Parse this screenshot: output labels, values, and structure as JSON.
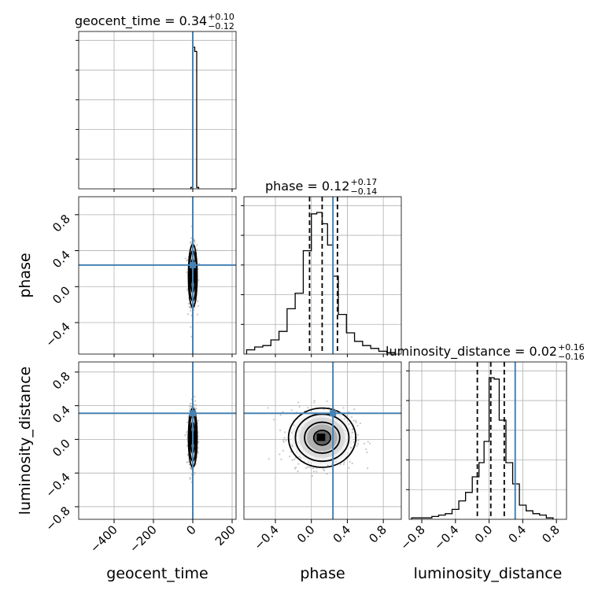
{
  "chart_data": {
    "type": "corner",
    "parameters": [
      "geocent_time",
      "phase",
      "luminosity_distance"
    ],
    "axis_labels": [
      "geocent_time",
      "phase",
      "luminosity_distance"
    ],
    "truths": {
      "geocent_time": 0,
      "phase": 0.24,
      "luminosity_distance": 0.31
    },
    "truth_color": "#4682b4",
    "grid": true,
    "ranges": {
      "geocent_time": [
        -580,
        220
      ],
      "phase": [
        -0.75,
        1.0
      ],
      "luminosity_distance": [
        -0.95,
        0.92
      ]
    },
    "ticks": {
      "geocent_time": [
        -400,
        -200,
        0,
        200
      ],
      "phase": [
        -0.4,
        0.0,
        0.4,
        0.8
      ],
      "luminosity_distance": [
        -0.8,
        -0.4,
        0.0,
        0.4,
        0.8
      ]
    },
    "tick_labels": {
      "geocent_time": [
        "−400",
        "−200",
        "0",
        "200"
      ],
      "phase": [
        "−0.4",
        "0.0",
        "0.4",
        "0.8"
      ],
      "luminosity_distance": [
        "−0.8",
        "−0.4",
        "0.0",
        "0.4",
        "0.8"
      ]
    },
    "phase_row_ticks": [
      -0.4,
      0.0,
      0.4,
      0.8
    ],
    "phase_row_tick_labels": [
      "−0.4",
      "0.0",
      "0.4",
      "0.8"
    ],
    "titles": [
      {
        "param": "geocent_time",
        "main": "geocent_time = 0.34",
        "upper": "+0.10",
        "lower": "−0.12"
      },
      {
        "param": "phase",
        "main": "phase = 0.12",
        "upper": "+0.17",
        "lower": "−0.14"
      },
      {
        "param": "luminosity_distance",
        "main": "luminosity_distance = 0.02",
        "upper": "+0.16",
        "lower": "−0.16"
      }
    ],
    "histograms": {
      "geocent_time": {
        "bin_edges": [
          -10,
          0,
          10,
          20,
          30
        ],
        "counts": [
          0.01,
          1.0,
          0.97,
          0.01
        ],
        "quantiles": [
          -0.12,
          0.34,
          0.44
        ]
      },
      "phase": {
        "bin_edges": [
          -0.72,
          -0.63,
          -0.54,
          -0.45,
          -0.36,
          -0.27,
          -0.18,
          -0.09,
          0.0,
          0.06,
          0.12,
          0.18,
          0.24,
          0.3,
          0.39,
          0.48,
          0.57,
          0.66,
          0.75,
          0.84,
          0.93
        ],
        "counts": [
          0.03,
          0.05,
          0.06,
          0.1,
          0.16,
          0.32,
          0.43,
          0.73,
          0.99,
          1.0,
          0.92,
          0.77,
          0.55,
          0.28,
          0.15,
          0.09,
          0.06,
          0.04,
          0.02,
          0.01
        ],
        "quantiles": [
          -0.02,
          0.12,
          0.29
        ]
      },
      "luminosity_distance": {
        "bin_edges": [
          -0.92,
          -0.84,
          -0.76,
          -0.68,
          -0.6,
          -0.52,
          -0.44,
          -0.36,
          -0.28,
          -0.2,
          -0.12,
          -0.06,
          0.0,
          0.06,
          0.12,
          0.2,
          0.28,
          0.36,
          0.44,
          0.52,
          0.6,
          0.68,
          0.76
        ],
        "counts": [
          0.01,
          0.01,
          0.01,
          0.02,
          0.03,
          0.04,
          0.07,
          0.13,
          0.19,
          0.3,
          0.4,
          0.55,
          1.0,
          0.99,
          0.7,
          0.4,
          0.25,
          0.1,
          0.06,
          0.04,
          0.03,
          0.01
        ],
        "quantiles": [
          -0.14,
          0.02,
          0.18
        ]
      }
    },
    "pairs": [
      {
        "x": "geocent_time",
        "y": "phase",
        "mean": [
          0,
          0.12
        ],
        "sigma": [
          10,
          0.16
        ]
      },
      {
        "x": "geocent_time",
        "y": "luminosity_distance",
        "mean": [
          0,
          0.02
        ],
        "sigma": [
          10,
          0.16
        ]
      },
      {
        "x": "phase",
        "y": "luminosity_distance",
        "mean": [
          0.12,
          0.02
        ],
        "sigma": [
          0.17,
          0.16
        ]
      }
    ]
  }
}
